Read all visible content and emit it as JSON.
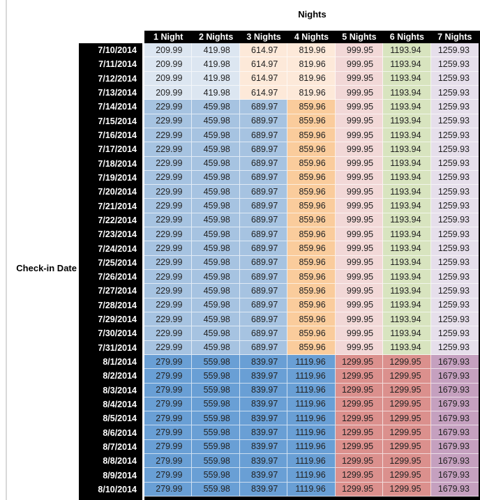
{
  "chart_data": {
    "type": "table",
    "title": "Nights",
    "row_axis_label": "Check-in Date",
    "columns": [
      "1 Night",
      "2 Nights",
      "3 Nights",
      "4 Nights",
      "5 Nights",
      "6 Nights",
      "7 Nights"
    ],
    "rows": [
      {
        "date": "7/10/2014",
        "period": "jul10_13",
        "values": [
          "209.99",
          "419.98",
          "614.97",
          "819.96",
          "999.95",
          "1193.94",
          "1259.93"
        ]
      },
      {
        "date": "7/11/2014",
        "period": "jul10_13",
        "values": [
          "209.99",
          "419.98",
          "614.97",
          "819.96",
          "999.95",
          "1193.94",
          "1259.93"
        ]
      },
      {
        "date": "7/12/2014",
        "period": "jul10_13",
        "values": [
          "209.99",
          "419.98",
          "614.97",
          "819.96",
          "999.95",
          "1193.94",
          "1259.93"
        ]
      },
      {
        "date": "7/13/2014",
        "period": "jul10_13",
        "values": [
          "209.99",
          "419.98",
          "614.97",
          "819.96",
          "999.95",
          "1193.94",
          "1259.93"
        ]
      },
      {
        "date": "7/14/2014",
        "period": "jul14_31",
        "values": [
          "229.99",
          "459.98",
          "689.97",
          "859.96",
          "999.95",
          "1193.94",
          "1259.93"
        ]
      },
      {
        "date": "7/15/2014",
        "period": "jul14_31",
        "values": [
          "229.99",
          "459.98",
          "689.97",
          "859.96",
          "999.95",
          "1193.94",
          "1259.93"
        ]
      },
      {
        "date": "7/16/2014",
        "period": "jul14_31",
        "values": [
          "229.99",
          "459.98",
          "689.97",
          "859.96",
          "999.95",
          "1193.94",
          "1259.93"
        ]
      },
      {
        "date": "7/17/2014",
        "period": "jul14_31",
        "values": [
          "229.99",
          "459.98",
          "689.97",
          "859.96",
          "999.95",
          "1193.94",
          "1259.93"
        ]
      },
      {
        "date": "7/18/2014",
        "period": "jul14_31",
        "values": [
          "229.99",
          "459.98",
          "689.97",
          "859.96",
          "999.95",
          "1193.94",
          "1259.93"
        ]
      },
      {
        "date": "7/19/2014",
        "period": "jul14_31",
        "values": [
          "229.99",
          "459.98",
          "689.97",
          "859.96",
          "999.95",
          "1193.94",
          "1259.93"
        ]
      },
      {
        "date": "7/20/2014",
        "period": "jul14_31",
        "values": [
          "229.99",
          "459.98",
          "689.97",
          "859.96",
          "999.95",
          "1193.94",
          "1259.93"
        ]
      },
      {
        "date": "7/21/2014",
        "period": "jul14_31",
        "values": [
          "229.99",
          "459.98",
          "689.97",
          "859.96",
          "999.95",
          "1193.94",
          "1259.93"
        ]
      },
      {
        "date": "7/22/2014",
        "period": "jul14_31",
        "values": [
          "229.99",
          "459.98",
          "689.97",
          "859.96",
          "999.95",
          "1193.94",
          "1259.93"
        ]
      },
      {
        "date": "7/23/2014",
        "period": "jul14_31",
        "values": [
          "229.99",
          "459.98",
          "689.97",
          "859.96",
          "999.95",
          "1193.94",
          "1259.93"
        ]
      },
      {
        "date": "7/24/2014",
        "period": "jul14_31",
        "values": [
          "229.99",
          "459.98",
          "689.97",
          "859.96",
          "999.95",
          "1193.94",
          "1259.93"
        ]
      },
      {
        "date": "7/25/2014",
        "period": "jul14_31",
        "values": [
          "229.99",
          "459.98",
          "689.97",
          "859.96",
          "999.95",
          "1193.94",
          "1259.93"
        ]
      },
      {
        "date": "7/26/2014",
        "period": "jul14_31",
        "values": [
          "229.99",
          "459.98",
          "689.97",
          "859.96",
          "999.95",
          "1193.94",
          "1259.93"
        ]
      },
      {
        "date": "7/27/2014",
        "period": "jul14_31",
        "values": [
          "229.99",
          "459.98",
          "689.97",
          "859.96",
          "999.95",
          "1193.94",
          "1259.93"
        ]
      },
      {
        "date": "7/28/2014",
        "period": "jul14_31",
        "values": [
          "229.99",
          "459.98",
          "689.97",
          "859.96",
          "999.95",
          "1193.94",
          "1259.93"
        ]
      },
      {
        "date": "7/29/2014",
        "period": "jul14_31",
        "values": [
          "229.99",
          "459.98",
          "689.97",
          "859.96",
          "999.95",
          "1193.94",
          "1259.93"
        ]
      },
      {
        "date": "7/30/2014",
        "period": "jul14_31",
        "values": [
          "229.99",
          "459.98",
          "689.97",
          "859.96",
          "999.95",
          "1193.94",
          "1259.93"
        ]
      },
      {
        "date": "7/31/2014",
        "period": "jul14_31",
        "values": [
          "229.99",
          "459.98",
          "689.97",
          "859.96",
          "999.95",
          "1193.94",
          "1259.93"
        ]
      },
      {
        "date": "8/1/2014",
        "period": "aug1_10",
        "values": [
          "279.99",
          "559.98",
          "839.97",
          "1119.96",
          "1299.95",
          "1299.95",
          "1679.93"
        ]
      },
      {
        "date": "8/2/2014",
        "period": "aug1_10",
        "values": [
          "279.99",
          "559.98",
          "839.97",
          "1119.96",
          "1299.95",
          "1299.95",
          "1679.93"
        ]
      },
      {
        "date": "8/3/2014",
        "period": "aug1_10",
        "values": [
          "279.99",
          "559.98",
          "839.97",
          "1119.96",
          "1299.95",
          "1299.95",
          "1679.93"
        ]
      },
      {
        "date": "8/4/2014",
        "period": "aug1_10",
        "values": [
          "279.99",
          "559.98",
          "839.97",
          "1119.96",
          "1299.95",
          "1299.95",
          "1679.93"
        ]
      },
      {
        "date": "8/5/2014",
        "period": "aug1_10",
        "values": [
          "279.99",
          "559.98",
          "839.97",
          "1119.96",
          "1299.95",
          "1299.95",
          "1679.93"
        ]
      },
      {
        "date": "8/6/2014",
        "period": "aug1_10",
        "values": [
          "279.99",
          "559.98",
          "839.97",
          "1119.96",
          "1299.95",
          "1299.95",
          "1679.93"
        ]
      },
      {
        "date": "8/7/2014",
        "period": "aug1_10",
        "values": [
          "279.99",
          "559.98",
          "839.97",
          "1119.96",
          "1299.95",
          "1299.95",
          "1679.93"
        ]
      },
      {
        "date": "8/8/2014",
        "period": "aug1_10",
        "values": [
          "279.99",
          "559.98",
          "839.97",
          "1119.96",
          "1299.95",
          "1299.95",
          "1679.93"
        ]
      },
      {
        "date": "8/9/2014",
        "period": "aug1_10",
        "values": [
          "279.99",
          "559.98",
          "839.97",
          "1119.96",
          "1299.95",
          "1299.95",
          "1679.93"
        ]
      },
      {
        "date": "8/10/2014",
        "period": "aug1_10",
        "values": [
          "279.99",
          "559.98",
          "839.97",
          "1119.96",
          "1299.95",
          "1299.95",
          "1679.93"
        ]
      }
    ]
  },
  "styles": {
    "header_bg": "#000000",
    "header_text": "#FFFFFF",
    "date_bg": "#000000",
    "date_text": "#FFFFFF",
    "value_text": "#212121",
    "left_rule": "#D9D9D9",
    "color_bands": {
      "jul10_13": [
        "#DCE6F1",
        "#DCE6F1",
        "#FDE9D9",
        "#FDE9D9",
        "#F2D8D7",
        "#D8E4BF",
        "#E6DFEB"
      ],
      "jul14_31": [
        "#A6C3E1",
        "#A6C3E1",
        "#A6C3E1",
        "#FACC9C",
        "#F2D8D7",
        "#D8E4BF",
        "#E6DFEB"
      ],
      "aug1_10": [
        "#699FD5",
        "#699FD5",
        "#699FD5",
        "#699FD5",
        "#DB908D",
        "#DB908D",
        "#C5A0BF"
      ]
    }
  }
}
